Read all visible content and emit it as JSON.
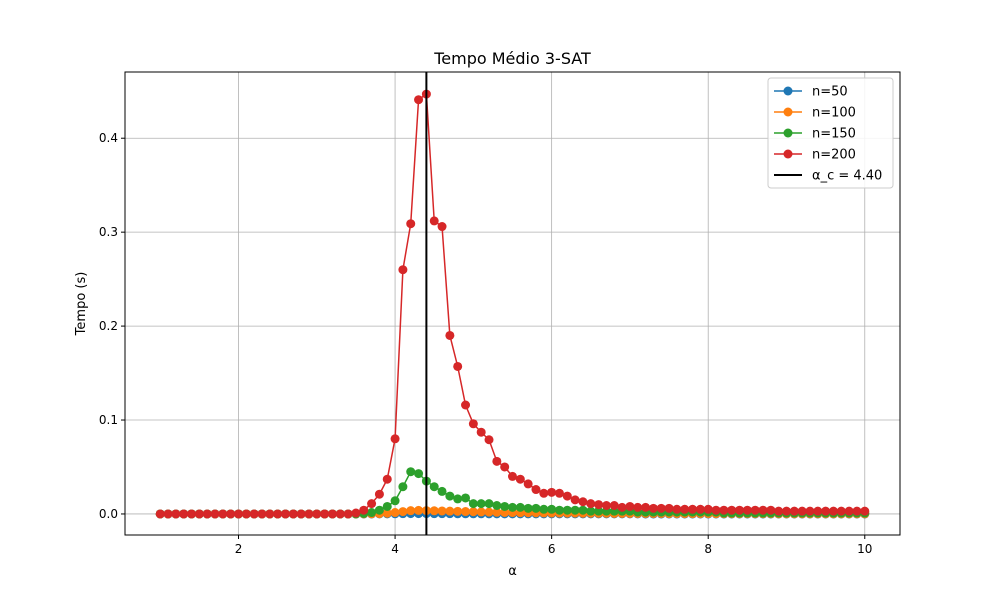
{
  "chart_data": {
    "type": "line",
    "title": "Tempo Médio 3-SAT",
    "xlabel": "α",
    "ylabel": "Tempo (s)",
    "xlim": [
      0.55,
      10.45
    ],
    "ylim": [
      -0.0224,
      0.4705
    ],
    "xticks": [
      2,
      4,
      6,
      8,
      10
    ],
    "xtick_labels": [
      "2",
      "4",
      "6",
      "8",
      "10"
    ],
    "yticks": [
      0.0,
      0.1,
      0.2,
      0.3,
      0.4
    ],
    "ytick_labels": [
      "0.0",
      "0.1",
      "0.2",
      "0.3",
      "0.4"
    ],
    "grid": true,
    "legend_position": "top-right",
    "x": [
      1.0,
      1.1,
      1.2,
      1.3,
      1.4,
      1.5,
      1.6,
      1.7,
      1.8,
      1.9,
      2.0,
      2.1,
      2.2,
      2.3,
      2.4,
      2.5,
      2.6,
      2.7,
      2.8,
      2.9,
      3.0,
      3.1,
      3.2,
      3.3,
      3.4,
      3.5,
      3.6,
      3.7,
      3.8,
      3.9,
      4.0,
      4.1,
      4.2,
      4.3,
      4.4,
      4.5,
      4.6,
      4.7,
      4.8,
      4.9,
      5.0,
      5.1,
      5.2,
      5.3,
      5.4,
      5.5,
      5.6,
      5.7,
      5.8,
      5.9,
      6.0,
      6.1,
      6.2,
      6.3,
      6.4,
      6.5,
      6.6,
      6.7,
      6.8,
      6.9,
      7.0,
      7.1,
      7.2,
      7.3,
      7.4,
      7.5,
      7.6,
      7.7,
      7.8,
      7.9,
      8.0,
      8.1,
      8.2,
      8.3,
      8.4,
      8.5,
      8.6,
      8.7,
      8.8,
      8.9,
      9.0,
      9.1,
      9.2,
      9.3,
      9.4,
      9.5,
      9.6,
      9.7,
      9.8,
      9.9,
      10.0
    ],
    "series": [
      {
        "name": "n=50",
        "color": "#1f77b4",
        "values": [
          0,
          0,
          0,
          0,
          0,
          0,
          0,
          0,
          0,
          0,
          0,
          0,
          0,
          0,
          0,
          0,
          0,
          0,
          0,
          0,
          0,
          0,
          0,
          0,
          0,
          0,
          0,
          0,
          0.0001,
          0.0001,
          0.0002,
          0.0003,
          0.0004,
          0.0004,
          0.0004,
          0.0003,
          0.0003,
          0.0003,
          0.0002,
          0.0002,
          0.0002,
          0.0002,
          0.0001,
          0.0001,
          0.0001,
          0.0001,
          0.0001,
          0.0001,
          0.0001,
          0.0001,
          0.0001,
          0.0001,
          0.0001,
          0.0001,
          0.0001,
          0.0001,
          0.0001,
          0.0001,
          0.0001,
          0.0001,
          0.0001,
          0.0001,
          0,
          0,
          0,
          0,
          0,
          0,
          0,
          0,
          0,
          0,
          0,
          0,
          0,
          0,
          0,
          0,
          0,
          0,
          0,
          0,
          0,
          0,
          0,
          0,
          0,
          0,
          0,
          0,
          0
        ]
      },
      {
        "name": "n=100",
        "color": "#ff7f0e",
        "values": [
          0,
          0,
          0,
          0,
          0,
          0,
          0,
          0,
          0,
          0,
          0,
          0,
          0,
          0,
          0,
          0,
          0,
          0,
          0,
          0,
          0,
          0,
          0,
          0,
          0,
          0,
          0.0001,
          0.0002,
          0.0004,
          0.0008,
          0.0015,
          0.0025,
          0.0035,
          0.0038,
          0.0036,
          0.0034,
          0.0032,
          0.003,
          0.0028,
          0.0026,
          0.0024,
          0.0022,
          0.002,
          0.0018,
          0.0016,
          0.0015,
          0.0014,
          0.0013,
          0.0012,
          0.0011,
          0.001,
          0.001,
          0.0009,
          0.0009,
          0.0008,
          0.0008,
          0.0007,
          0.0007,
          0.0006,
          0.0006,
          0.0006,
          0.0005,
          0.0005,
          0.0005,
          0.0005,
          0.0004,
          0.0004,
          0.0004,
          0.0004,
          0.0004,
          0.0004,
          0.0003,
          0.0003,
          0.0003,
          0.0003,
          0.0003,
          0.0003,
          0.0003,
          0.0003,
          0.0002,
          0.0002,
          0.0002,
          0.0002,
          0.0002,
          0.0002,
          0.0002,
          0.0002,
          0.0002,
          0.0002,
          0.0002,
          0.0002
        ]
      },
      {
        "name": "n=150",
        "color": "#2ca02c",
        "values": [
          0,
          0,
          0,
          0,
          0,
          0,
          0,
          0,
          0,
          0,
          0,
          0,
          0,
          0,
          0,
          0,
          0,
          0,
          0,
          0,
          0,
          0,
          0,
          0,
          0,
          0,
          0.0005,
          0.0015,
          0.004,
          0.008,
          0.014,
          0.029,
          0.045,
          0.043,
          0.035,
          0.029,
          0.024,
          0.019,
          0.016,
          0.017,
          0.011,
          0.011,
          0.011,
          0.009,
          0.008,
          0.007,
          0.007,
          0.006,
          0.006,
          0.005,
          0.005,
          0.004,
          0.004,
          0.004,
          0.004,
          0.003,
          0.003,
          0.003,
          0.003,
          0.003,
          0.003,
          0.002,
          0.002,
          0.002,
          0.002,
          0.002,
          0.002,
          0.002,
          0.002,
          0.002,
          0.002,
          0.002,
          0.001,
          0.001,
          0.001,
          0.001,
          0.001,
          0.001,
          0.001,
          0.001,
          0.001,
          0.001,
          0.001,
          0.001,
          0.001,
          0.001,
          0.001,
          0.001,
          0.001,
          0.001,
          0.001
        ]
      },
      {
        "name": "n=200",
        "color": "#d62728",
        "values": [
          0,
          0,
          0,
          0,
          0,
          0,
          0,
          0,
          0,
          0,
          0,
          0,
          0,
          0,
          0,
          0,
          0,
          0,
          0,
          0,
          0,
          0,
          0,
          0,
          0,
          0.001,
          0.004,
          0.011,
          0.021,
          0.037,
          0.08,
          0.26,
          0.309,
          0.441,
          0.447,
          0.312,
          0.306,
          0.19,
          0.157,
          0.116,
          0.096,
          0.087,
          0.079,
          0.056,
          0.05,
          0.04,
          0.037,
          0.032,
          0.026,
          0.022,
          0.023,
          0.022,
          0.019,
          0.015,
          0.013,
          0.011,
          0.01,
          0.009,
          0.009,
          0.007,
          0.008,
          0.007,
          0.007,
          0.006,
          0.006,
          0.006,
          0.005,
          0.005,
          0.005,
          0.005,
          0.005,
          0.004,
          0.004,
          0.004,
          0.004,
          0.004,
          0.004,
          0.004,
          0.004,
          0.003,
          0.003,
          0.003,
          0.003,
          0.003,
          0.003,
          0.003,
          0.003,
          0.003,
          0.003,
          0.003,
          0.003
        ]
      }
    ],
    "vline": {
      "x": 4.4,
      "label": "α_c = 4.40",
      "color": "#000000"
    }
  }
}
